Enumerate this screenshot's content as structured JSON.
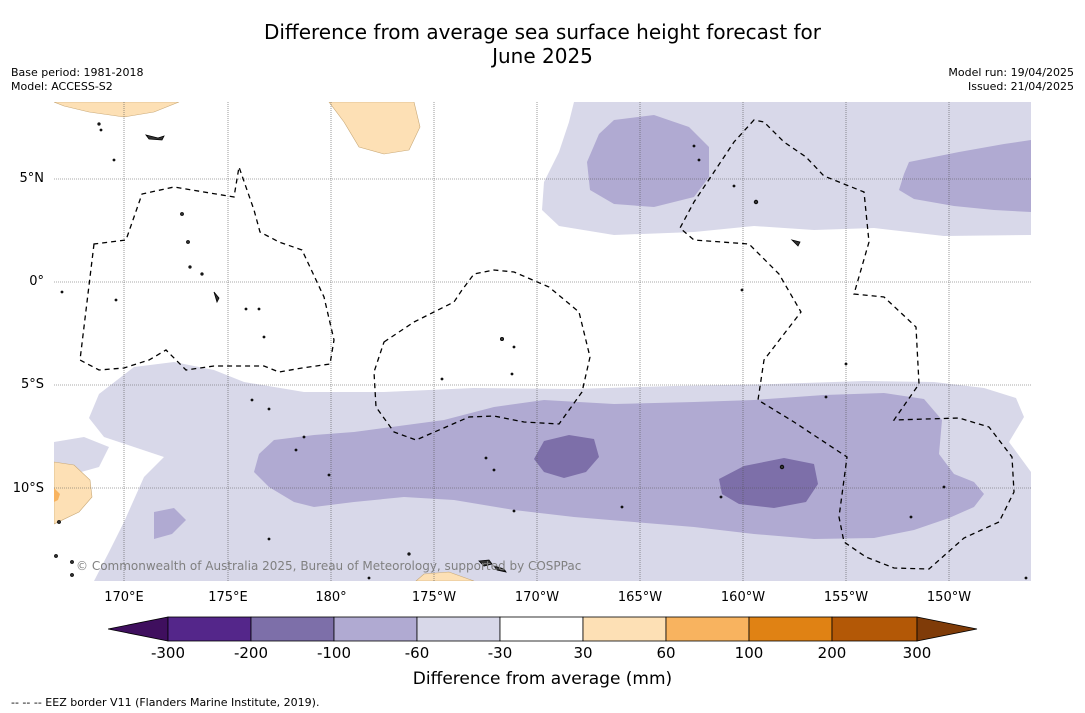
{
  "title_line1": "Difference from average sea surface height forecast for",
  "title_line2": "June 2025",
  "base_period": "Base period: 1981-2018",
  "model": "Model: ACCESS-S2",
  "model_run": "Model run: 19/04/2025",
  "issued": "Issued: 21/04/2025",
  "latitude_labels": [
    "5°N",
    "0°",
    "5°S",
    "10°S"
  ],
  "longitude_labels": [
    "170°E",
    "175°E",
    "180°",
    "175°W",
    "170°W",
    "165°W",
    "160°W",
    "155°W",
    "150°W"
  ],
  "credit": "© Commonwealth of Australia 2025, Bureau of Meteorology, supported by COSPPac",
  "colorbar": {
    "ticks": [
      "-300",
      "-200",
      "-100",
      "-60",
      "-30",
      "30",
      "60",
      "100",
      "200",
      "300"
    ],
    "colors": [
      "#3f0f5e",
      "#54268a",
      "#7d6fa9",
      "#b0aad2",
      "#d8d8e9",
      "#ffffff",
      "#fde0b5",
      "#f8b35f",
      "#e08214",
      "#b35806",
      "#7f3b08"
    ],
    "label": "Difference from average (mm)"
  },
  "legend_eez": "--  --  -- EEZ border V11 (Flanders Marine Institute, 2019)."
}
